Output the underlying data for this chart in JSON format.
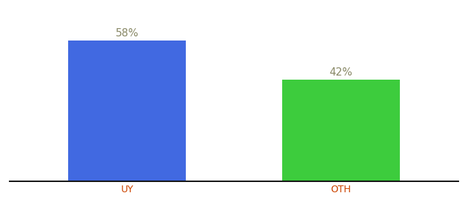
{
  "categories": [
    "UY",
    "OTH"
  ],
  "values": [
    58,
    42
  ],
  "bar_colors": [
    "#4169e1",
    "#3dcc3d"
  ],
  "label_texts": [
    "58%",
    "42%"
  ],
  "xlabel_color": "#cc4400",
  "label_color": "#888866",
  "background_color": "#ffffff",
  "ylim": [
    0,
    68
  ],
  "bar_width": 0.55,
  "figsize": [
    6.8,
    3.0
  ],
  "dpi": 100,
  "tick_label_fontsize": 10,
  "value_label_fontsize": 11,
  "axis_bottom_color": "#111111"
}
